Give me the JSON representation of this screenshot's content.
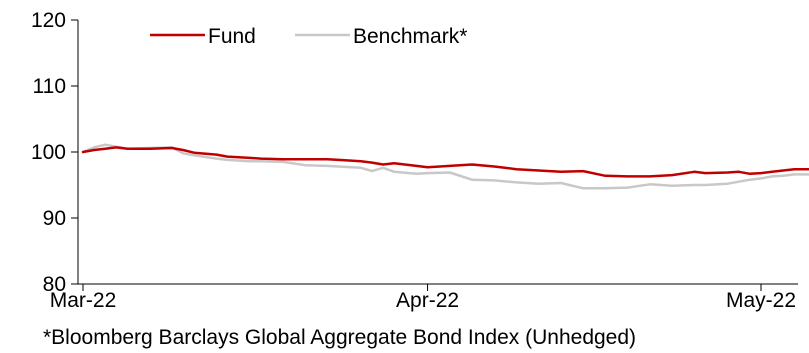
{
  "chart_data": {
    "type": "line",
    "y_ticks": [
      "80",
      "90",
      "100",
      "110",
      "120"
    ],
    "ylim": [
      80,
      120
    ],
    "x_ticks": [
      {
        "label": "Mar-22",
        "date": "2022-03-01"
      },
      {
        "label": "Apr-22",
        "date": "2022-04-01"
      },
      {
        "label": "May-22",
        "date": "2022-05-01"
      }
    ],
    "xlim": [
      "2022-03-01",
      "2022-05-04"
    ],
    "legend_position": "top",
    "series": [
      {
        "name": "Fund",
        "color": "#c00000",
        "points": [
          [
            "2022-03-01",
            100.0
          ],
          [
            "2022-03-02",
            100.3
          ],
          [
            "2022-03-03",
            100.5
          ],
          [
            "2022-03-04",
            100.7
          ],
          [
            "2022-03-05",
            100.5
          ],
          [
            "2022-03-07",
            100.5
          ],
          [
            "2022-03-09",
            100.6
          ],
          [
            "2022-03-10",
            100.3
          ],
          [
            "2022-03-11",
            99.9
          ],
          [
            "2022-03-13",
            99.6
          ],
          [
            "2022-03-14",
            99.3
          ],
          [
            "2022-03-16",
            99.1
          ],
          [
            "2022-03-17",
            99.0
          ],
          [
            "2022-03-19",
            98.9
          ],
          [
            "2022-03-21",
            98.9
          ],
          [
            "2022-03-23",
            98.9
          ],
          [
            "2022-03-24",
            98.8
          ],
          [
            "2022-03-26",
            98.6
          ],
          [
            "2022-03-27",
            98.4
          ],
          [
            "2022-03-28",
            98.1
          ],
          [
            "2022-03-29",
            98.3
          ],
          [
            "2022-03-31",
            97.9
          ],
          [
            "2022-04-01",
            97.7
          ],
          [
            "2022-04-03",
            97.9
          ],
          [
            "2022-04-05",
            98.1
          ],
          [
            "2022-04-07",
            97.8
          ],
          [
            "2022-04-09",
            97.4
          ],
          [
            "2022-04-11",
            97.2
          ],
          [
            "2022-04-13",
            97.0
          ],
          [
            "2022-04-15",
            97.1
          ],
          [
            "2022-04-17",
            96.4
          ],
          [
            "2022-04-19",
            96.3
          ],
          [
            "2022-04-21",
            96.3
          ],
          [
            "2022-04-23",
            96.5
          ],
          [
            "2022-04-25",
            97.0
          ],
          [
            "2022-04-26",
            96.8
          ],
          [
            "2022-04-28",
            96.9
          ],
          [
            "2022-04-29",
            97.0
          ],
          [
            "2022-04-30",
            96.7
          ],
          [
            "2022-05-01",
            96.8
          ],
          [
            "2022-05-02",
            97.0
          ],
          [
            "2022-05-03",
            97.2
          ],
          [
            "2022-05-04",
            97.4
          ],
          [
            "2022-05-05",
            97.4
          ],
          [
            "2022-05-07",
            97.3
          ],
          [
            "2022-05-08",
            96.9
          ]
        ]
      },
      {
        "name": "Benchmark*",
        "color": "#c8c8c8",
        "points": [
          [
            "2022-03-01",
            100.0
          ],
          [
            "2022-03-02",
            100.7
          ],
          [
            "2022-03-03",
            101.1
          ],
          [
            "2022-03-04",
            100.8
          ],
          [
            "2022-03-05",
            100.5
          ],
          [
            "2022-03-07",
            100.6
          ],
          [
            "2022-03-09",
            100.7
          ],
          [
            "2022-03-10",
            99.8
          ],
          [
            "2022-03-11",
            99.5
          ],
          [
            "2022-03-13",
            99.0
          ],
          [
            "2022-03-14",
            98.8
          ],
          [
            "2022-03-16",
            98.6
          ],
          [
            "2022-03-17",
            98.6
          ],
          [
            "2022-03-19",
            98.5
          ],
          [
            "2022-03-21",
            98.0
          ],
          [
            "2022-03-23",
            97.9
          ],
          [
            "2022-03-24",
            97.8
          ],
          [
            "2022-03-26",
            97.6
          ],
          [
            "2022-03-27",
            97.1
          ],
          [
            "2022-03-28",
            97.6
          ],
          [
            "2022-03-29",
            97.0
          ],
          [
            "2022-03-31",
            96.7
          ],
          [
            "2022-04-01",
            96.8
          ],
          [
            "2022-04-03",
            96.9
          ],
          [
            "2022-04-05",
            95.8
          ],
          [
            "2022-04-07",
            95.7
          ],
          [
            "2022-04-09",
            95.4
          ],
          [
            "2022-04-11",
            95.2
          ],
          [
            "2022-04-13",
            95.3
          ],
          [
            "2022-04-15",
            94.5
          ],
          [
            "2022-04-17",
            94.5
          ],
          [
            "2022-04-19",
            94.6
          ],
          [
            "2022-04-21",
            95.1
          ],
          [
            "2022-04-23",
            94.9
          ],
          [
            "2022-04-25",
            95.0
          ],
          [
            "2022-04-26",
            95.0
          ],
          [
            "2022-04-28",
            95.2
          ],
          [
            "2022-04-29",
            95.5
          ],
          [
            "2022-04-30",
            95.8
          ],
          [
            "2022-05-01",
            96.0
          ],
          [
            "2022-05-02",
            96.3
          ],
          [
            "2022-05-03",
            96.4
          ],
          [
            "2022-05-04",
            96.6
          ],
          [
            "2022-05-05",
            96.6
          ],
          [
            "2022-05-07",
            96.5
          ],
          [
            "2022-05-08",
            96.0
          ]
        ]
      }
    ]
  },
  "footnote": "*Bloomberg Barclays Global Aggregate Bond Index (Unhedged)"
}
